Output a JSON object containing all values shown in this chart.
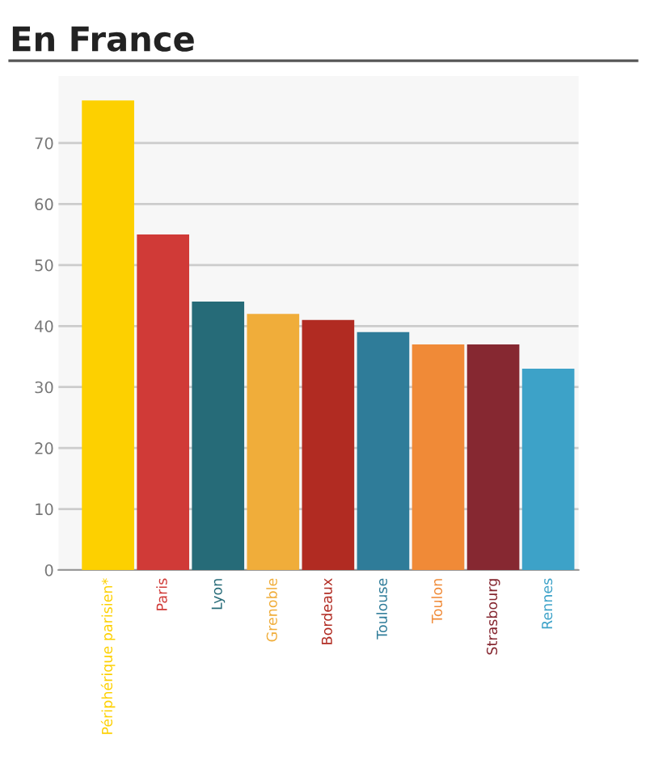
{
  "chart_data": {
    "type": "bar",
    "title": "En France",
    "categories": [
      "Périphérique parisien*",
      "Paris",
      "Lyon",
      "Grenoble",
      "Bordeaux",
      "Toulouse",
      "Toulon",
      "Strasbourg",
      "Rennes"
    ],
    "values": [
      77,
      55,
      44,
      42,
      41,
      39,
      37,
      37,
      33
    ],
    "colors": [
      "#fdd000",
      "#d03a37",
      "#266b78",
      "#f0ad3a",
      "#b12b22",
      "#2f7c99",
      "#f08a37",
      "#862831",
      "#3da2c8"
    ],
    "ylim": [
      0,
      81
    ],
    "yticks": [
      0,
      10,
      20,
      30,
      40,
      50,
      60,
      70
    ],
    "grid": "y"
  }
}
